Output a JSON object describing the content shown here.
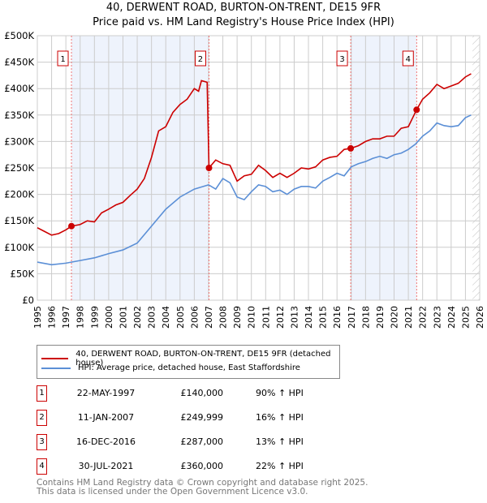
{
  "title": "40, DERWENT ROAD, BURTON-ON-TRENT, DE15 9FR",
  "subtitle": "Price paid vs. HM Land Registry's House Price Index (HPI)",
  "colors": {
    "property": "#cc0000",
    "hpi": "#5b8fd6",
    "shade": "#eef3fc"
  },
  "chart_data": {
    "type": "line",
    "xlim": [
      1995,
      2026
    ],
    "ylim": [
      0,
      500000
    ],
    "yticks": [
      0,
      50000,
      100000,
      150000,
      200000,
      250000,
      300000,
      350000,
      400000,
      450000,
      500000
    ],
    "yticklabels": [
      "£0",
      "£50K",
      "£100K",
      "£150K",
      "£200K",
      "£250K",
      "£300K",
      "£350K",
      "£400K",
      "£450K",
      "£500K"
    ],
    "xticks": [
      1995,
      1996,
      1997,
      1998,
      1999,
      2000,
      2001,
      2002,
      2003,
      2004,
      2005,
      2006,
      2007,
      2008,
      2009,
      2010,
      2011,
      2012,
      2013,
      2014,
      2015,
      2016,
      2017,
      2018,
      2019,
      2020,
      2021,
      2022,
      2023,
      2024,
      2025,
      2026
    ],
    "series": [
      {
        "name": "40, DERWENT ROAD, BURTON-ON-TRENT, DE15 9FR (detached house)",
        "color": "#cc0000",
        "x": [
          1995,
          1995.5,
          1996,
          1996.5,
          1997,
          1997.4,
          1998,
          1998.5,
          1999,
          1999.5,
          2000,
          2000.5,
          2001,
          2001.5,
          2002,
          2002.5,
          2003,
          2003.5,
          2004,
          2004.5,
          2005,
          2005.5,
          2006,
          2006.3,
          2006.5,
          2006.9,
          2007.03,
          2007.5,
          2008,
          2008.5,
          2009,
          2009.5,
          2010,
          2010.5,
          2011,
          2011.5,
          2012,
          2012.5,
          2013,
          2013.5,
          2014,
          2014.5,
          2015,
          2015.5,
          2016,
          2016.5,
          2016.96,
          2017.5,
          2018,
          2018.5,
          2019,
          2019.5,
          2020,
          2020.5,
          2021,
          2021.58,
          2022,
          2022.5,
          2023,
          2023.5,
          2024,
          2024.5,
          2025,
          2025.4
        ],
        "y": [
          137000,
          130000,
          123000,
          126000,
          133000,
          140000,
          143000,
          150000,
          148000,
          165000,
          172000,
          180000,
          185000,
          198000,
          210000,
          230000,
          270000,
          320000,
          328000,
          355000,
          370000,
          380000,
          400000,
          395000,
          415000,
          412000,
          249999,
          265000,
          258000,
          255000,
          225000,
          235000,
          238000,
          255000,
          245000,
          232000,
          240000,
          232000,
          240000,
          250000,
          248000,
          252000,
          265000,
          270000,
          272000,
          285000,
          287000,
          292000,
          300000,
          305000,
          305000,
          310000,
          310000,
          325000,
          328000,
          360000,
          380000,
          392000,
          408000,
          400000,
          405000,
          410000,
          422000,
          428000
        ]
      },
      {
        "name": "HPI: Average price, detached house, East Staffordshire",
        "color": "#5b8fd6",
        "x": [
          1995,
          1996,
          1997,
          1998,
          1999,
          2000,
          2001,
          2002,
          2003,
          2004,
          2005,
          2006,
          2007,
          2007.5,
          2008,
          2008.5,
          2009,
          2009.5,
          2010,
          2010.5,
          2011,
          2011.5,
          2012,
          2012.5,
          2013,
          2013.5,
          2014,
          2014.5,
          2015,
          2015.5,
          2016,
          2016.5,
          2017,
          2017.5,
          2018,
          2018.5,
          2019,
          2019.5,
          2020,
          2020.5,
          2021,
          2021.5,
          2022,
          2022.5,
          2023,
          2023.5,
          2024,
          2024.5,
          2025,
          2025.4
        ],
        "y": [
          72000,
          67000,
          70000,
          75000,
          80000,
          88000,
          95000,
          108000,
          140000,
          172000,
          195000,
          210000,
          218000,
          210000,
          230000,
          222000,
          195000,
          190000,
          205000,
          218000,
          215000,
          205000,
          208000,
          200000,
          210000,
          215000,
          215000,
          212000,
          225000,
          232000,
          240000,
          235000,
          252000,
          258000,
          262000,
          268000,
          272000,
          268000,
          275000,
          278000,
          285000,
          295000,
          310000,
          320000,
          335000,
          330000,
          328000,
          330000,
          345000,
          350000
        ]
      }
    ],
    "sales": [
      {
        "label": "1",
        "x": 1997.39,
        "y": 140000,
        "date": "22-MAY-1997",
        "price": "£140,000",
        "hpi": "90% ↑ HPI"
      },
      {
        "label": "2",
        "x": 2007.03,
        "y": 249999,
        "date": "11-JAN-2007",
        "price": "£249,999",
        "hpi": "16% ↑ HPI"
      },
      {
        "label": "3",
        "x": 2016.96,
        "y": 287000,
        "date": "16-DEC-2016",
        "price": "£287,000",
        "hpi": "13% ↑ HPI"
      },
      {
        "label": "4",
        "x": 2021.58,
        "y": 360000,
        "date": "30-JUL-2021",
        "price": "£360,000",
        "hpi": "22% ↑ HPI"
      }
    ],
    "shaded": [
      [
        1997.39,
        2007.03
      ],
      [
        2016.96,
        2021.58
      ]
    ],
    "hatched_from": 2025.5
  },
  "legend": {
    "property": "40, DERWENT ROAD, BURTON-ON-TRENT, DE15 9FR (detached house)",
    "hpi": "HPI: Average price, detached house, East Staffordshire"
  },
  "footer": {
    "line1": "Contains HM Land Registry data © Crown copyright and database right 2025.",
    "line2": "This data is licensed under the Open Government Licence v3.0."
  }
}
